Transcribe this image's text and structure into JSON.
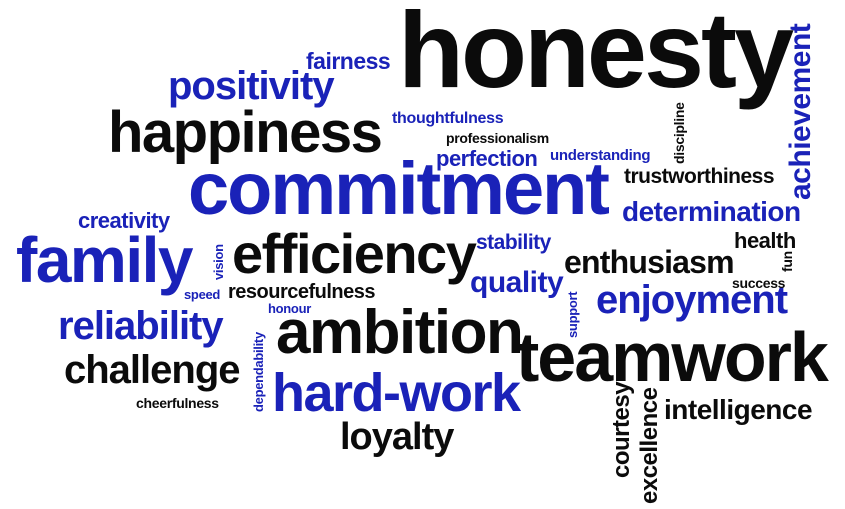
{
  "words": {
    "honesty": "honesty",
    "commitment": "commitment",
    "happiness": "happiness",
    "family": "family",
    "teamwork": "teamwork",
    "ambition": "ambition",
    "efficiency": "efficiency",
    "hard_work": "hard-work",
    "positivity": "positivity",
    "reliability": "reliability",
    "challenge": "challenge",
    "loyalty": "loyalty",
    "enjoyment": "enjoyment",
    "enthusiasm": "enthusiasm",
    "determination": "determination",
    "achievement": "achievement",
    "intelligence": "intelligence",
    "quality": "quality",
    "trustworthiness": "trustworthiness",
    "perfection": "perfection",
    "fairness": "fairness",
    "creativity": "creativity",
    "stability": "stability",
    "resourcefulness": "resourcefulness",
    "health": "health",
    "courtesy": "courtesy",
    "excellence": "excellence",
    "thoughtfulness": "thoughtfulness",
    "professionalism": "professionalism",
    "understanding": "understanding",
    "discipline": "discipline",
    "cheerfulness": "cheerfulness",
    "success": "success",
    "speed": "speed",
    "honour": "honour",
    "vision": "vision",
    "fun": "fun",
    "support": "support",
    "dependability": "dependability"
  },
  "colors": {
    "black": "#0b0b0b",
    "blue": "#1a22b8",
    "background": "#ffffff"
  }
}
